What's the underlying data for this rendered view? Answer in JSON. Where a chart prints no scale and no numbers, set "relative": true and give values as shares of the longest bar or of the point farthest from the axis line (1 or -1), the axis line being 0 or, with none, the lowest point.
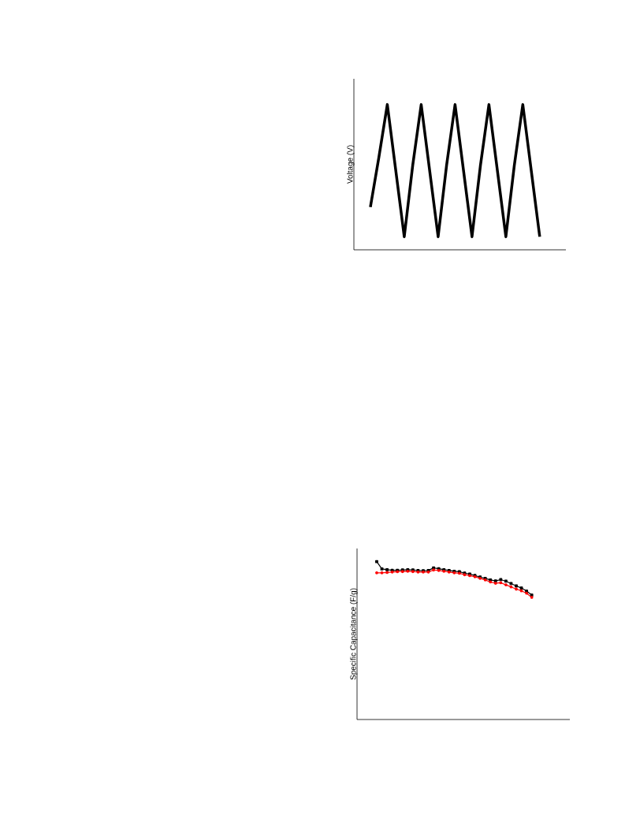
{
  "chart_data": [
    {
      "type": "line",
      "ylabel": "Voltage (V)",
      "relative": true,
      "marker": "none",
      "categories": [
        null,
        null,
        null,
        null,
        null,
        null,
        null,
        null,
        null,
        null,
        null,
        null,
        null,
        null,
        null,
        null,
        null,
        null,
        null,
        null,
        null
      ],
      "series": [
        {
          "color": "#000000",
          "values": [
            0.294,
            0.636,
            1,
            0.545,
            0.09,
            0.582,
            1,
            0.545,
            0.09,
            0.582,
            1,
            0.545,
            0.09,
            0.582,
            1,
            0.545,
            0.09,
            0.582,
            1,
            0.545,
            0.09
          ]
        }
      ]
    },
    {
      "type": "line",
      "ylabel": "Specific Capacitance (F/g)",
      "relative": true,
      "categories": [
        null,
        null,
        null,
        null,
        null,
        null,
        null,
        null,
        null,
        null,
        null,
        null,
        null,
        null,
        null,
        null,
        null,
        null,
        null,
        null,
        null,
        null,
        null,
        null,
        null,
        null,
        null,
        null,
        null,
        null,
        null
      ],
      "series": [
        {
          "color": "#000000",
          "marker": "square",
          "values": [
            1,
            0.954,
            0.949,
            0.945,
            0.945,
            0.947,
            0.949,
            0.947,
            0.944,
            0.942,
            0.944,
            0.96,
            0.955,
            0.949,
            0.944,
            0.939,
            0.936,
            0.927,
            0.921,
            0.912,
            0.902,
            0.894,
            0.884,
            0.878,
            0.886,
            0.876,
            0.861,
            0.846,
            0.833,
            0.813,
            0.788
          ]
        },
        {
          "color": "#ff0000",
          "marker": "circle",
          "values": [
            0.929,
            0.929,
            0.931,
            0.934,
            0.936,
            0.937,
            0.939,
            0.937,
            0.934,
            0.934,
            0.934,
            0.947,
            0.944,
            0.939,
            0.934,
            0.929,
            0.926,
            0.917,
            0.911,
            0.904,
            0.894,
            0.884,
            0.871,
            0.863,
            0.866,
            0.853,
            0.84,
            0.826,
            0.815,
            0.8,
            0.774
          ]
        }
      ]
    }
  ]
}
